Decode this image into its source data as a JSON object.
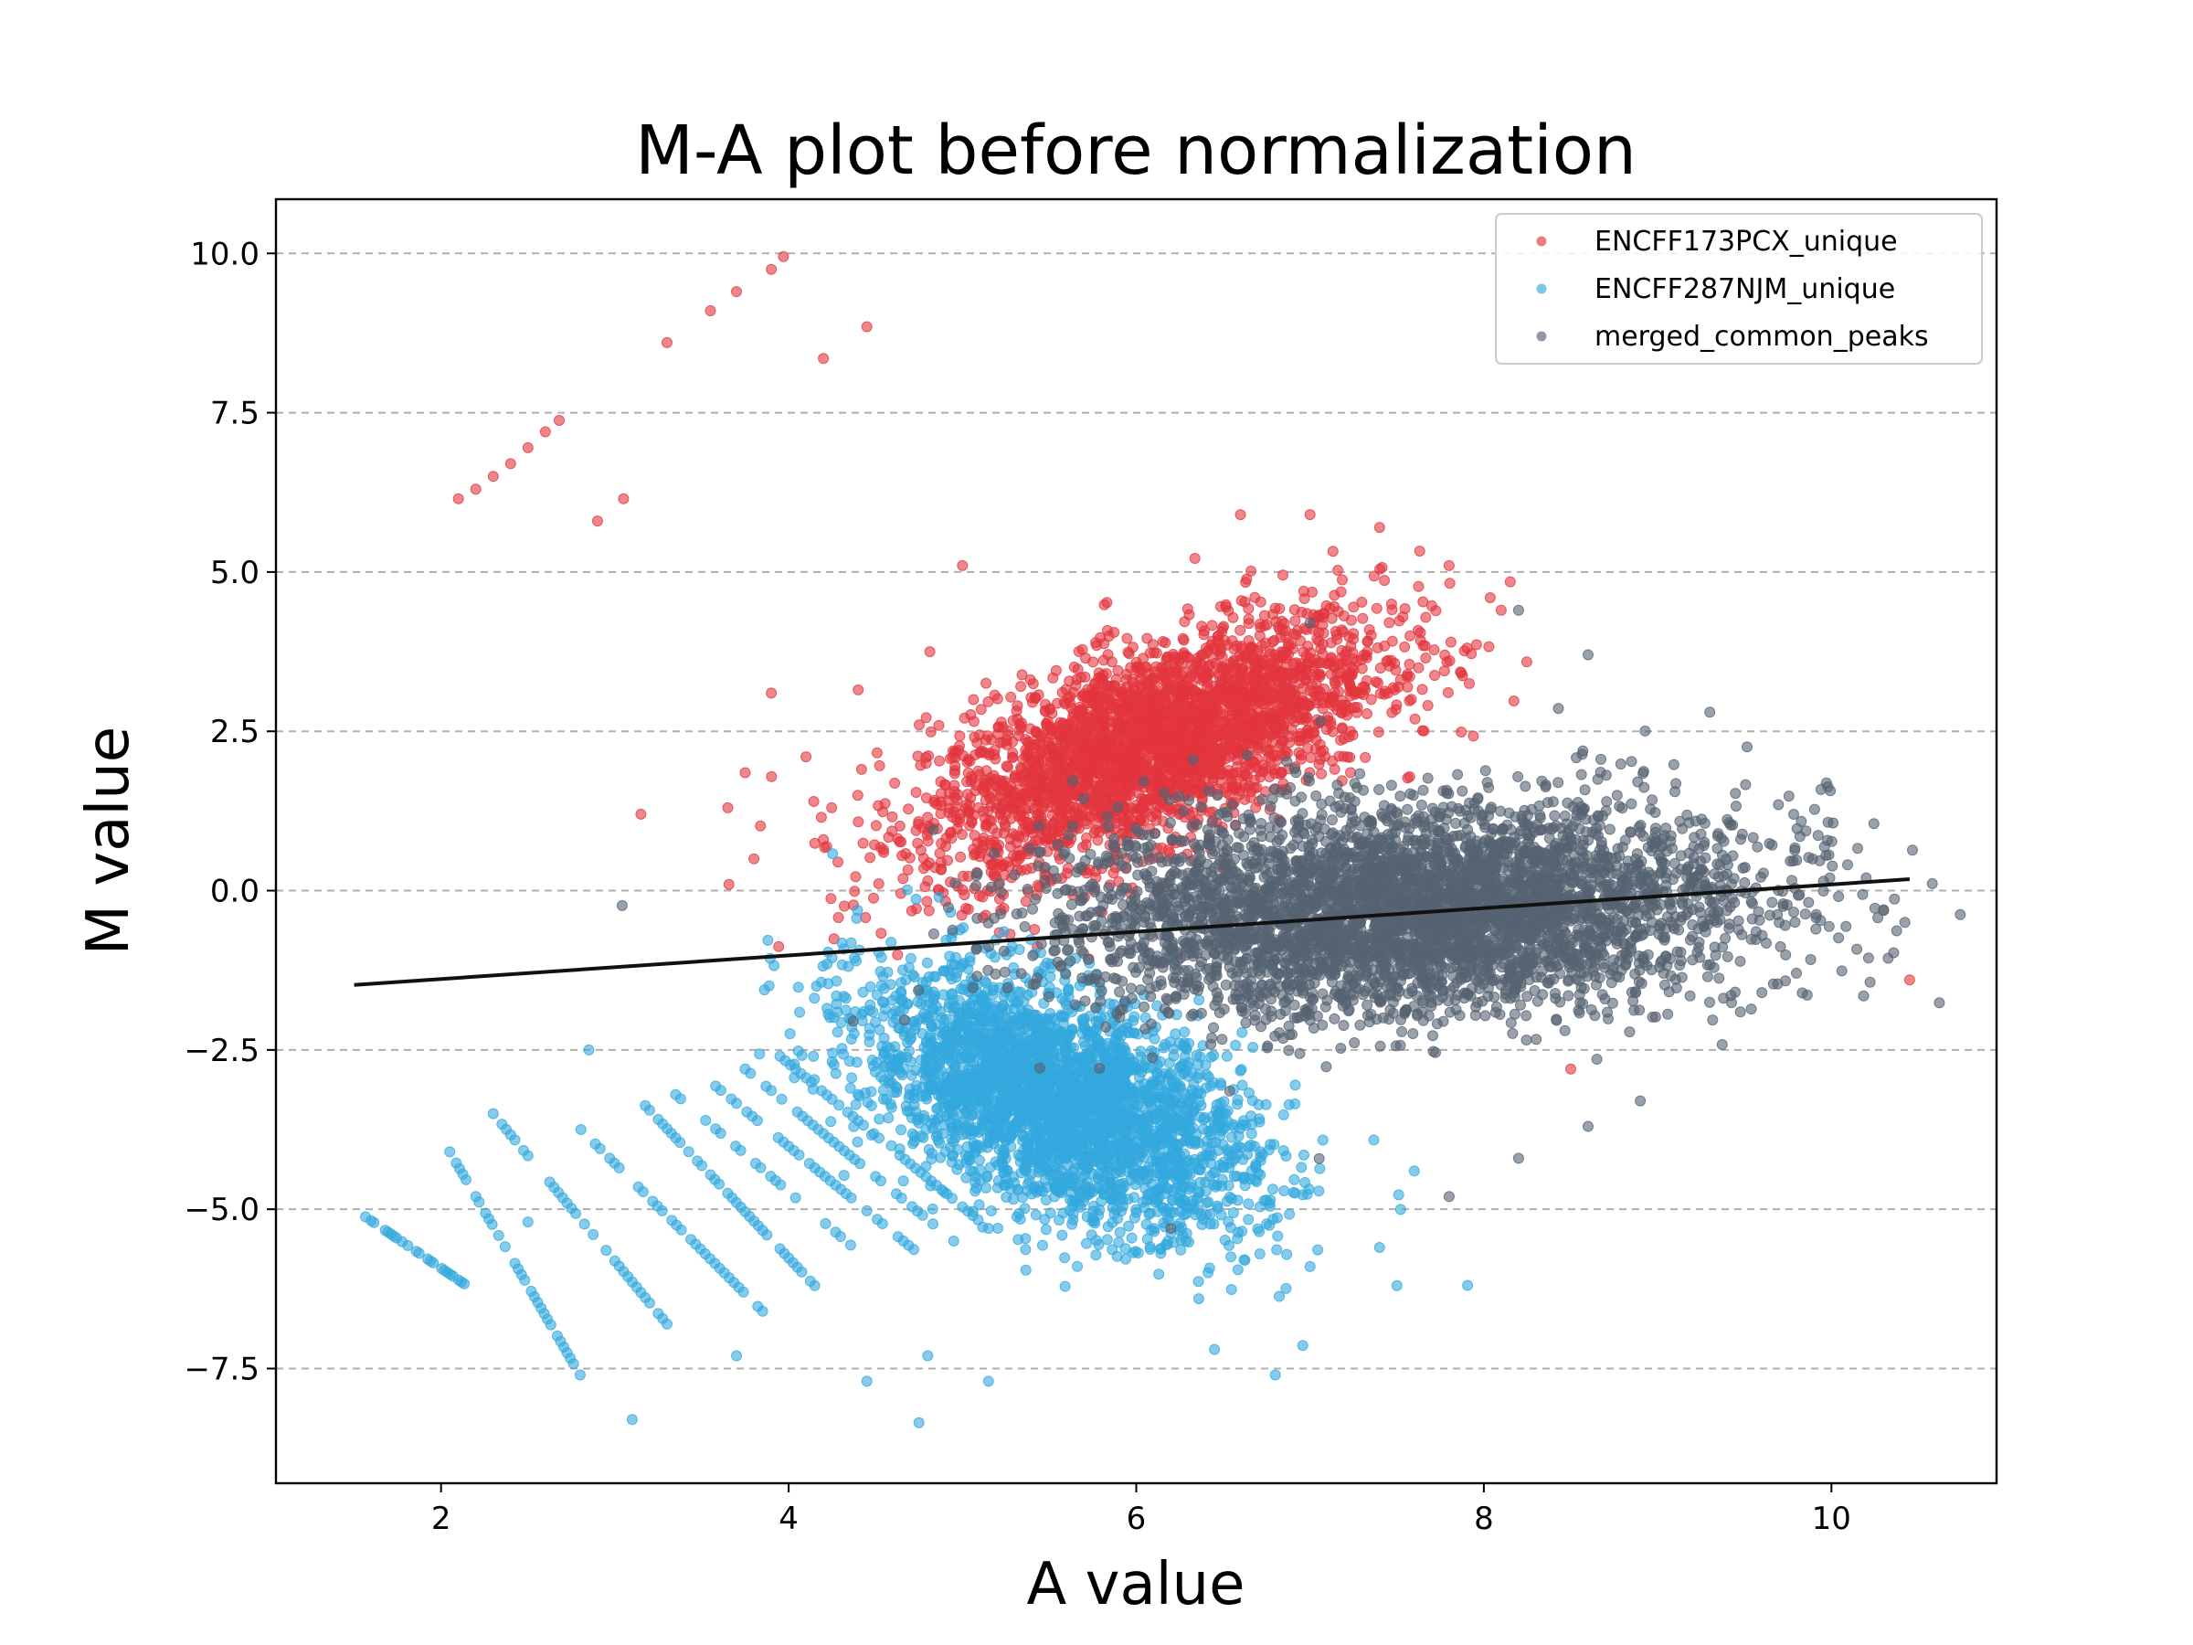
{
  "chart_data": {
    "type": "scatter",
    "title": "M-A plot before normalization",
    "xlabel": "A value",
    "ylabel": "M value",
    "xlim": [
      1.05,
      10.95
    ],
    "ylim": [
      -9.3,
      10.85
    ],
    "xticks": [
      2,
      4,
      6,
      8,
      10
    ],
    "xtick_labels": [
      "2",
      "4",
      "6",
      "8",
      "10"
    ],
    "yticks": [
      -7.5,
      -5.0,
      -2.5,
      0.0,
      2.5,
      5.0,
      7.5,
      10.0
    ],
    "ytick_labels": [
      "−7.5",
      "−5.0",
      "−2.5",
      "0.0",
      "2.5",
      "5.0",
      "7.5",
      "10.0"
    ],
    "grid": "horizontal dashed",
    "legend_position": "top-right",
    "series": [
      {
        "name": "ENCFF173PCX_unique",
        "color": "#e3363d",
        "cloud": {
          "center": [
            6.1,
            2.3
          ],
          "spread": [
            0.65,
            0.75
          ],
          "slope": 0.95,
          "count": 3200
        },
        "points": [
          [
            2.1,
            6.15
          ],
          [
            2.2,
            6.3
          ],
          [
            2.3,
            6.5
          ],
          [
            2.4,
            6.7
          ],
          [
            2.5,
            6.95
          ],
          [
            2.6,
            7.2
          ],
          [
            2.68,
            7.38
          ],
          [
            2.9,
            5.8
          ],
          [
            3.05,
            6.15
          ],
          [
            3.3,
            8.6
          ],
          [
            3.55,
            9.1
          ],
          [
            3.7,
            9.4
          ],
          [
            3.9,
            9.75
          ],
          [
            3.97,
            9.95
          ],
          [
            4.2,
            8.35
          ],
          [
            4.45,
            8.85
          ],
          [
            3.15,
            1.2
          ],
          [
            3.75,
            1.85
          ],
          [
            3.65,
            1.3
          ],
          [
            3.9,
            3.1
          ],
          [
            4.4,
            3.15
          ],
          [
            4.1,
            2.1
          ],
          [
            5.0,
            5.1
          ],
          [
            6.6,
            5.9
          ],
          [
            7.0,
            5.9
          ],
          [
            7.4,
            5.7
          ],
          [
            7.8,
            5.1
          ],
          [
            8.1,
            4.4
          ],
          [
            10.45,
            -1.4
          ],
          [
            8.5,
            -2.8
          ],
          [
            4.2,
            0.8
          ],
          [
            3.8,
            0.5
          ]
        ]
      },
      {
        "name": "ENCFF287NJM_unique",
        "color": "#33a8dd",
        "cloud": {
          "center": [
            5.55,
            -3.3
          ],
          "spread": [
            0.55,
            0.85
          ],
          "slope": -0.9,
          "count": 3200
        },
        "stripes": [
          {
            "a_start": 1.5,
            "m_start": -5.0,
            "a_end": 2.15,
            "m_end": -6.2
          },
          {
            "a_start": 2.05,
            "m_start": -4.1,
            "a_end": 2.8,
            "m_end": -7.6
          },
          {
            "a_start": 2.3,
            "m_start": -3.5,
            "a_end": 3.3,
            "m_end": -6.8
          },
          {
            "a_start": 2.75,
            "m_start": -3.6,
            "a_end": 3.85,
            "m_end": -6.6
          },
          {
            "a_start": 3.15,
            "m_start": -3.3,
            "a_end": 4.15,
            "m_end": -6.2
          },
          {
            "a_start": 3.35,
            "m_start": -3.2,
            "a_end": 4.5,
            "m_end": -5.9
          },
          {
            "a_start": 3.55,
            "m_start": -3.0,
            "a_end": 4.75,
            "m_end": -5.7
          },
          {
            "a_start": 3.75,
            "m_start": -2.8,
            "a_end": 4.95,
            "m_end": -5.5
          },
          {
            "a_start": 3.95,
            "m_start": -2.6,
            "a_end": 5.15,
            "m_end": -5.3
          }
        ],
        "points": [
          [
            2.85,
            -2.5
          ],
          [
            3.1,
            -8.3
          ],
          [
            4.75,
            -8.35
          ],
          [
            4.45,
            -7.7
          ],
          [
            5.15,
            -7.7
          ],
          [
            6.8,
            -7.6
          ],
          [
            4.8,
            -7.3
          ],
          [
            3.7,
            -7.3
          ],
          [
            6.45,
            -7.2
          ],
          [
            7.5,
            -6.2
          ],
          [
            7.4,
            -5.6
          ],
          [
            7.0,
            -5.9
          ],
          [
            2.5,
            -5.2
          ],
          [
            7.6,
            -4.4
          ]
        ]
      },
      {
        "name": "merged_common_peaks",
        "color": "#556372",
        "cloud": {
          "center": [
            7.6,
            -0.3
          ],
          "spread": [
            0.95,
            0.8
          ],
          "slope": 0.12,
          "count": 4500
        },
        "points": [
          [
            8.2,
            4.4
          ],
          [
            7.0,
            4.2
          ],
          [
            8.6,
            3.7
          ],
          [
            9.3,
            2.8
          ],
          [
            10.2,
            0.2
          ],
          [
            10.3,
            -0.3
          ],
          [
            9.6,
            -1.6
          ],
          [
            8.9,
            -3.3
          ],
          [
            8.6,
            -3.7
          ],
          [
            6.2,
            -5.3
          ],
          [
            7.8,
            -4.8
          ],
          [
            8.2,
            -4.2
          ]
        ]
      }
    ],
    "fit_line": {
      "color": "#111111",
      "x": [
        1.5,
        10.45
      ],
      "y": [
        -1.48,
        0.18
      ]
    }
  }
}
